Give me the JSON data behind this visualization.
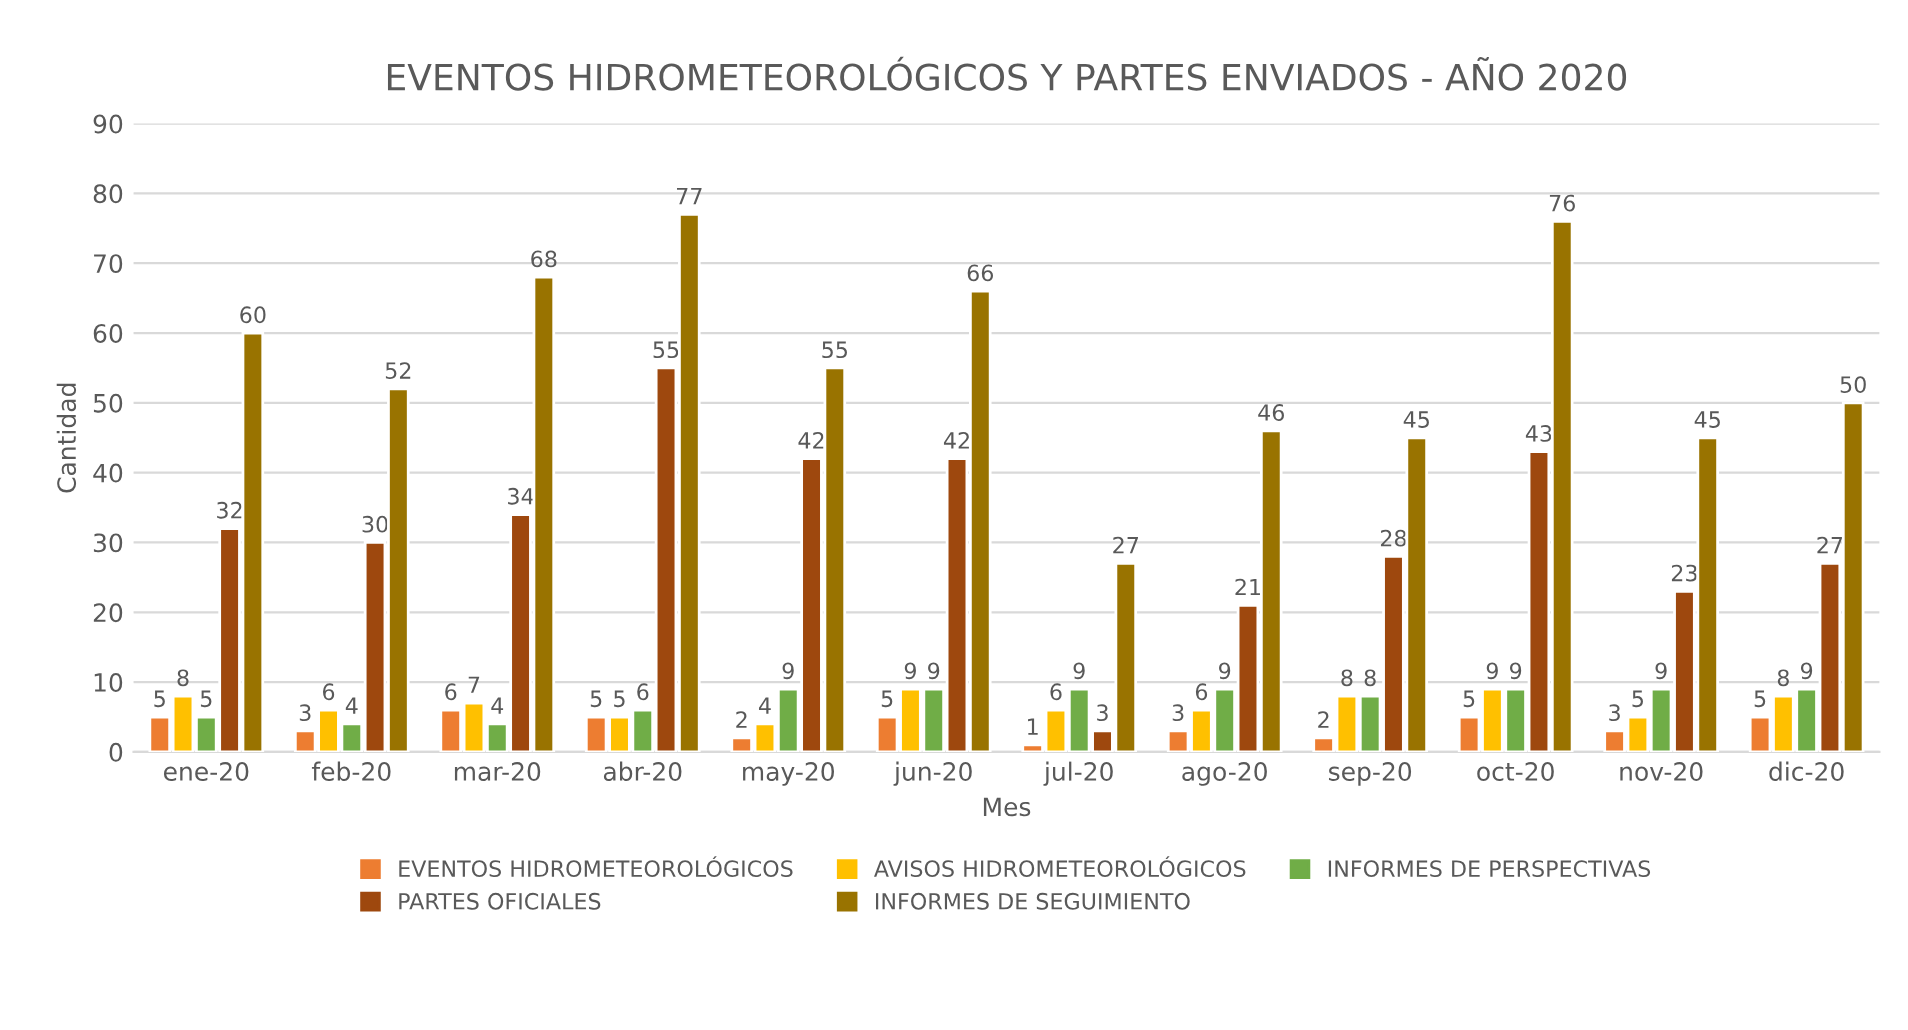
{
  "chart_data": {
    "type": "bar",
    "title": "EVENTOS HIDROMETEOROLÓGICOS Y PARTES ENVIADOS - AÑO 2020",
    "xlabel": "Mes",
    "ylabel": "Cantidad",
    "categories": [
      "ene-20",
      "feb-20",
      "mar-20",
      "abr-20",
      "may-20",
      "jun-20",
      "jul-20",
      "ago-20",
      "sep-20",
      "oct-20",
      "nov-20",
      "dic-20"
    ],
    "series": [
      {
        "name": "EVENTOS HIDROMETEOROLÓGICOS",
        "color": "#ed7d31",
        "values": [
          5,
          3,
          6,
          5,
          2,
          5,
          1,
          3,
          2,
          5,
          3,
          5
        ]
      },
      {
        "name": "AVISOS HIDROMETEOROLÓGICOS",
        "color": "#ffc000",
        "values": [
          8,
          6,
          7,
          5,
          4,
          9,
          6,
          6,
          8,
          9,
          5,
          8
        ]
      },
      {
        "name": "INFORMES DE PERSPECTIVAS",
        "color": "#70ad47",
        "values": [
          5,
          4,
          4,
          6,
          9,
          9,
          9,
          9,
          8,
          9,
          9,
          9
        ]
      },
      {
        "name": "PARTES OFICIALES",
        "color": "#9e480e",
        "values": [
          32,
          30,
          34,
          55,
          42,
          42,
          3,
          21,
          28,
          43,
          23,
          27
        ]
      },
      {
        "name": "INFORMES DE SEGUIMIENTO",
        "color": "#997300",
        "values": [
          60,
          52,
          68,
          77,
          55,
          66,
          27,
          46,
          45,
          76,
          45,
          50
        ]
      }
    ],
    "ylim": [
      0,
      90
    ],
    "yticks": [
      0,
      10,
      20,
      30,
      40,
      50,
      60,
      70,
      80,
      90
    ],
    "grid": "y",
    "legend": "bottom",
    "data_labels": true
  }
}
